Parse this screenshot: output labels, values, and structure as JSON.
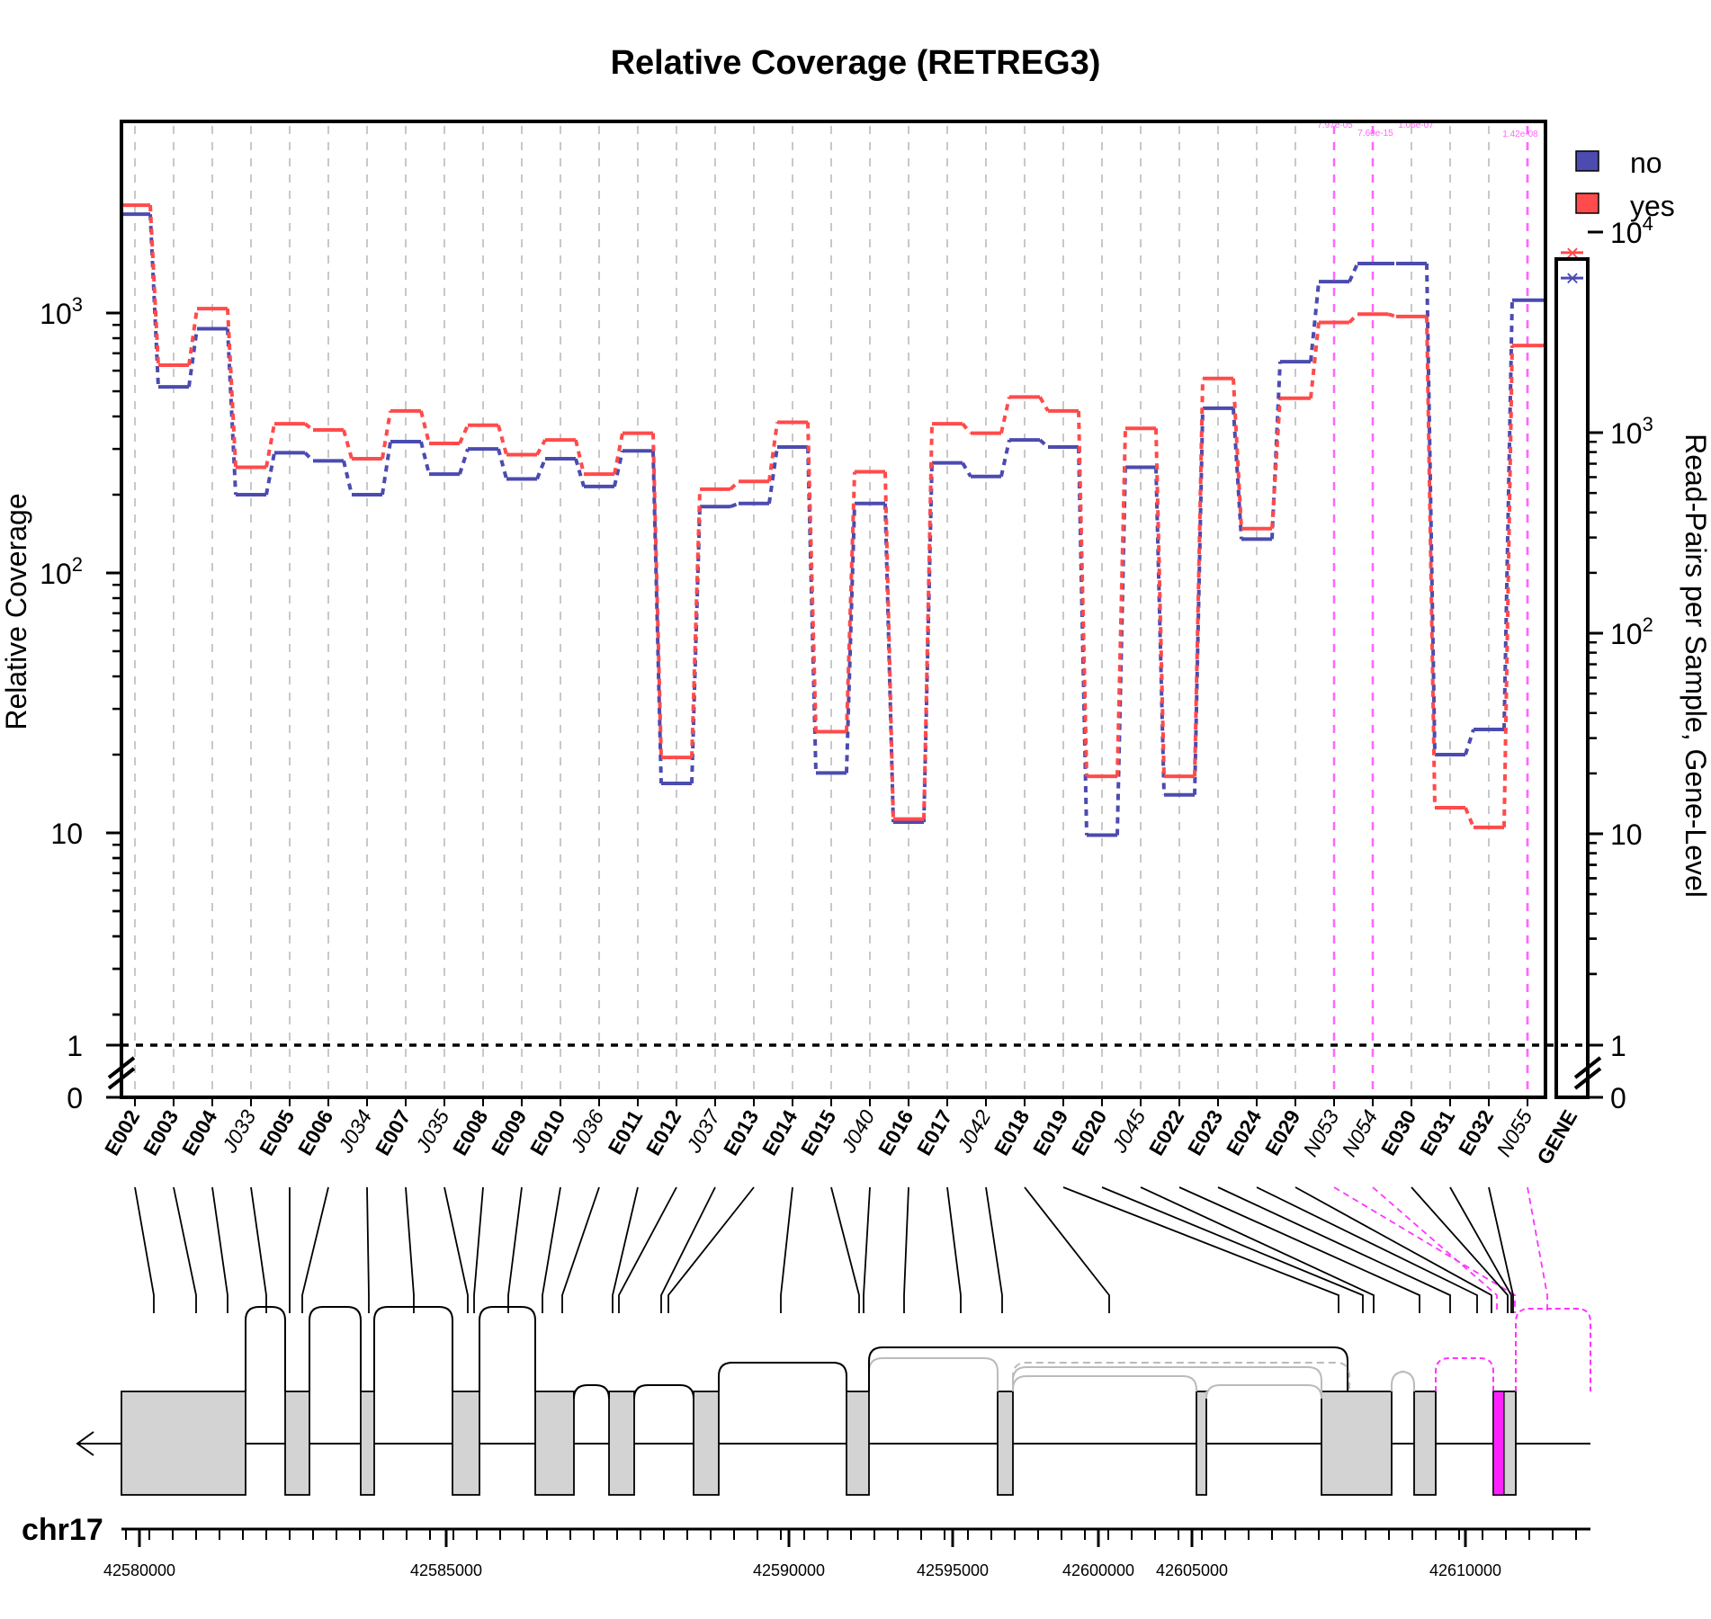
{
  "chart_data": {
    "type": "line",
    "title": "Relative Coverage (RETREG3)",
    "ylabel": "Relative Coverage",
    "ylabel_right": "Read-Pairs per Sample, Gene-Level",
    "y_scale": "log",
    "y_ticks_left": [
      "10",
      "10^2",
      "10^3"
    ],
    "y_ticks_left_below_break": [
      "1",
      "0"
    ],
    "y_ticks_right": [
      "10",
      "10^2",
      "10^3",
      "10^4"
    ],
    "y_ticks_right_below_break": [
      "1",
      "0"
    ],
    "chromosome": "chr17",
    "coordinate_ticks": [
      "42580000",
      "42585000",
      "42590000",
      "42595000",
      "42600000",
      "42605000",
      "42610000"
    ],
    "grid": "vertical dashed lines at each feature",
    "legend_placement": "top-right",
    "features": [
      {
        "id": "E002",
        "kind": "exon"
      },
      {
        "id": "E003",
        "kind": "exon"
      },
      {
        "id": "E004",
        "kind": "exon"
      },
      {
        "id": "J033",
        "kind": "junction"
      },
      {
        "id": "E005",
        "kind": "exon"
      },
      {
        "id": "E006",
        "kind": "exon"
      },
      {
        "id": "J034",
        "kind": "junction"
      },
      {
        "id": "E007",
        "kind": "exon"
      },
      {
        "id": "J035",
        "kind": "junction"
      },
      {
        "id": "E008",
        "kind": "exon"
      },
      {
        "id": "E009",
        "kind": "exon"
      },
      {
        "id": "E010",
        "kind": "exon"
      },
      {
        "id": "J036",
        "kind": "junction"
      },
      {
        "id": "E011",
        "kind": "exon"
      },
      {
        "id": "E012",
        "kind": "exon"
      },
      {
        "id": "J037",
        "kind": "junction"
      },
      {
        "id": "E013",
        "kind": "exon"
      },
      {
        "id": "E014",
        "kind": "exon"
      },
      {
        "id": "E015",
        "kind": "exon"
      },
      {
        "id": "J040",
        "kind": "junction"
      },
      {
        "id": "E016",
        "kind": "exon"
      },
      {
        "id": "E017",
        "kind": "exon"
      },
      {
        "id": "J042",
        "kind": "junction"
      },
      {
        "id": "E018",
        "kind": "exon"
      },
      {
        "id": "E019",
        "kind": "exon"
      },
      {
        "id": "E020",
        "kind": "exon"
      },
      {
        "id": "J045",
        "kind": "junction"
      },
      {
        "id": "E022",
        "kind": "exon"
      },
      {
        "id": "E023",
        "kind": "exon"
      },
      {
        "id": "E024",
        "kind": "exon"
      },
      {
        "id": "E029",
        "kind": "exon"
      },
      {
        "id": "N053",
        "kind": "novel-junction"
      },
      {
        "id": "N054",
        "kind": "novel-junction"
      },
      {
        "id": "E030",
        "kind": "exon"
      },
      {
        "id": "E031",
        "kind": "exon"
      },
      {
        "id": "E032",
        "kind": "exon"
      },
      {
        "id": "N055",
        "kind": "novel-junction"
      }
    ],
    "gene_label": "GENE",
    "series": [
      {
        "name": "no",
        "color": "#4b4bb0",
        "values": [
          2400,
          520,
          870,
          200,
          290,
          270,
          200,
          320,
          240,
          300,
          230,
          275,
          215,
          295,
          15.5,
          180,
          185,
          305,
          17,
          185,
          11,
          265,
          235,
          325,
          305,
          9.8,
          255,
          14,
          430,
          135,
          650,
          1320,
          1550,
          1550,
          20,
          25,
          1120
        ],
        "gene_value": 5900
      },
      {
        "name": "yes",
        "color": "#ff4b4b",
        "values": [
          2600,
          630,
          1040,
          255,
          375,
          355,
          275,
          420,
          315,
          370,
          285,
          325,
          240,
          345,
          19.5,
          210,
          225,
          380,
          24.5,
          245,
          11.3,
          375,
          345,
          475,
          420,
          16.5,
          360,
          16.5,
          560,
          148,
          470,
          920,
          990,
          970,
          12.5,
          10.5,
          750
        ],
        "gene_value": 7900
      }
    ],
    "pvalue_annotations": [
      "7.97e-05",
      "7.60e-15",
      "1.06e-07",
      "1.42e-08"
    ]
  }
}
